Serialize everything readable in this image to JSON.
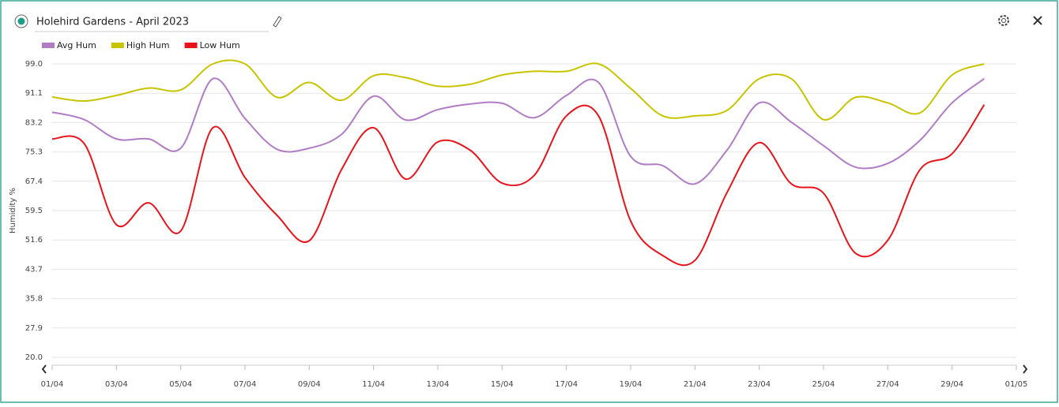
{
  "chart_data": {
    "type": "line",
    "title": "Holehird Gardens - April 2023",
    "y_label": "Humidity %",
    "x": [
      "01/04",
      "02/04",
      "03/04",
      "04/04",
      "05/04",
      "06/04",
      "07/04",
      "08/04",
      "09/04",
      "10/04",
      "11/04",
      "12/04",
      "13/04",
      "14/04",
      "15/04",
      "16/04",
      "17/04",
      "18/04",
      "19/04",
      "20/04",
      "21/04",
      "22/04",
      "23/04",
      "24/04",
      "25/04",
      "26/04",
      "27/04",
      "28/04",
      "29/04",
      "30/04"
    ],
    "xlim": [
      "01/04",
      "01/05"
    ],
    "xticks": [
      "01/04",
      "03/04",
      "05/04",
      "07/04",
      "09/04",
      "11/04",
      "13/04",
      "15/04",
      "17/04",
      "19/04",
      "21/04",
      "23/04",
      "25/04",
      "27/04",
      "29/04",
      "01/05"
    ],
    "ylim": [
      20,
      99
    ],
    "yticks": [
      {
        "value": 20,
        "label": "20.0"
      },
      27.9,
      35.8,
      43.7,
      51.6,
      59.5,
      67.4,
      75.3,
      83.2,
      91.1,
      {
        "value": 99,
        "label": "99.0"
      }
    ],
    "grid": true,
    "legend": "top-left",
    "series": [
      {
        "name": "Avg Hum",
        "color": "#b07cc6",
        "values": [
          86,
          84,
          78.8,
          78.8,
          76.3,
          95,
          84.3,
          76,
          76.3,
          80,
          90.3,
          83.9,
          86.7,
          88.2,
          88.4,
          84.5,
          90.5,
          94,
          74.1,
          71.6,
          66.7,
          75.8,
          88.5,
          83.3,
          77,
          71.2,
          72.2,
          78.4,
          88.5,
          95
        ]
      },
      {
        "name": "High Hum",
        "color": "#c8c400",
        "values": [
          90.1,
          89,
          90.5,
          92.5,
          92,
          99,
          99,
          90,
          94,
          89.2,
          95.8,
          95.3,
          93,
          93.5,
          96,
          97,
          97,
          99,
          92.4,
          85,
          85,
          86.5,
          95,
          95,
          84,
          90,
          88.5,
          85.8,
          96,
          99
        ]
      },
      {
        "name": "Low Hum",
        "color": "#e8141c",
        "values": [
          78.8,
          77.5,
          55.7,
          61.6,
          54,
          81.8,
          68.4,
          58.2,
          51.4,
          70.5,
          81.8,
          68,
          78,
          75.8,
          66.9,
          69,
          85,
          85,
          56.7,
          47.4,
          46.1,
          64.4,
          77.8,
          66.7,
          64.2,
          48,
          51.5,
          70.5,
          74.8,
          88
        ]
      }
    ]
  }
}
